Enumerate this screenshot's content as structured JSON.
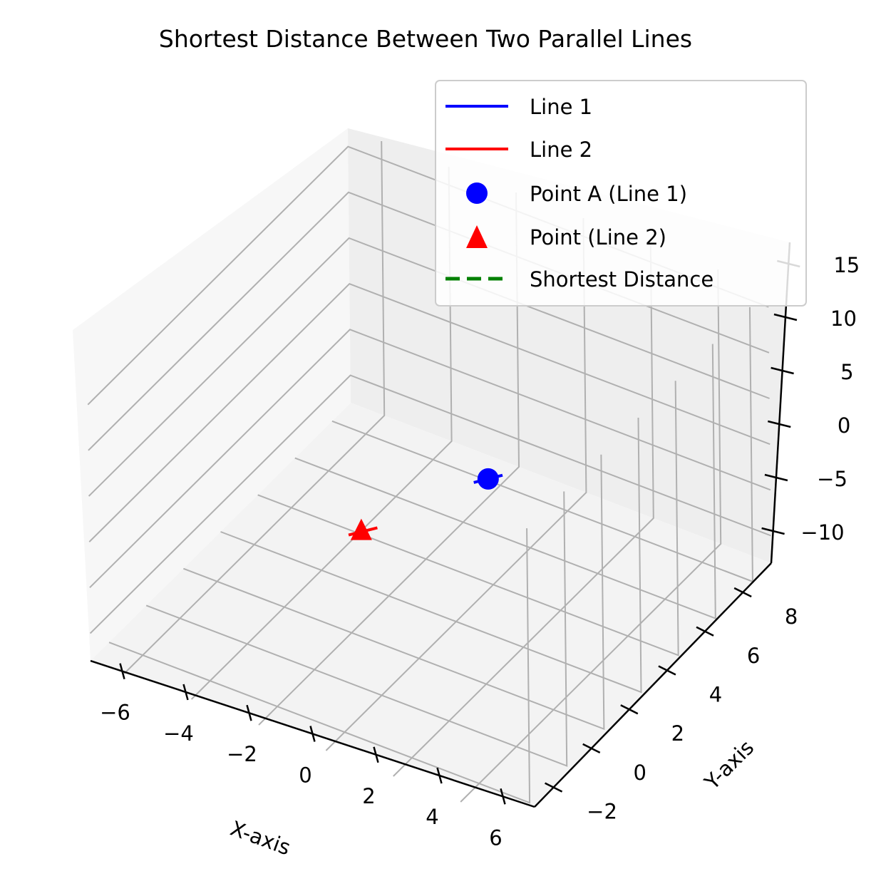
{
  "chart_data": {
    "type": "line3d",
    "title": "Shortest Distance Between Two Parallel Lines",
    "xlabel": "X-axis",
    "ylabel": "Y-axis",
    "zlabel": "",
    "xticks": [
      "−6",
      "−4",
      "−2",
      "0",
      "2",
      "4",
      "6"
    ],
    "yticks": [
      "−2",
      "0",
      "2",
      "4",
      "6",
      "8"
    ],
    "zticks": [
      "−10",
      "−5",
      "0",
      "5",
      "10",
      "15"
    ],
    "xlim": [
      -7,
      7
    ],
    "ylim": [
      -3,
      9.5
    ],
    "zlim": [
      -13,
      17
    ],
    "grid": true,
    "legend_position": "upper right",
    "series": [
      {
        "name": "Line 1",
        "kind": "line",
        "color": "#0000ff",
        "points": [
          [
            -0.5,
            4.85,
            4.4
          ],
          [
            0.5,
            5.15,
            3.6
          ]
        ]
      },
      {
        "name": "Line 2",
        "kind": "line",
        "color": "#ff0000",
        "points": [
          [
            -5.5,
            3.9,
            7.4
          ],
          [
            -4.5,
            4.2,
            6.6
          ]
        ]
      },
      {
        "name": "Point A (Line 1)",
        "kind": "point",
        "marker": "circle",
        "color": "#0000ff",
        "points": [
          [
            0,
            5,
            4
          ]
        ]
      },
      {
        "name": "Point (Line 2)",
        "kind": "point",
        "marker": "triangle",
        "color": "#ff0000",
        "points": [
          [
            -5,
            4,
            7
          ]
        ]
      },
      {
        "name": "Shortest Distance",
        "kind": "dashed-line",
        "color": "#008000",
        "points": []
      }
    ]
  }
}
